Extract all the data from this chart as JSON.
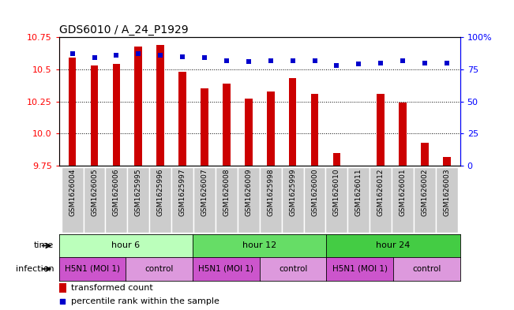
{
  "title": "GDS6010 / A_24_P1929",
  "samples": [
    "GSM1626004",
    "GSM1626005",
    "GSM1626006",
    "GSM1625995",
    "GSM1625996",
    "GSM1625997",
    "GSM1626007",
    "GSM1626008",
    "GSM1626009",
    "GSM1625998",
    "GSM1625999",
    "GSM1626000",
    "GSM1626010",
    "GSM1626011",
    "GSM1626012",
    "GSM1626001",
    "GSM1626002",
    "GSM1626003"
  ],
  "bar_values": [
    10.59,
    10.53,
    10.54,
    10.68,
    10.69,
    10.48,
    10.35,
    10.39,
    10.27,
    10.33,
    10.43,
    10.31,
    9.85,
    9.75,
    10.31,
    10.24,
    9.93,
    9.82
  ],
  "percentile_values": [
    87,
    84,
    86,
    87,
    86,
    85,
    84,
    82,
    81,
    82,
    82,
    82,
    78,
    79,
    80,
    82,
    80,
    80
  ],
  "ylim_left": [
    9.75,
    10.75
  ],
  "ylim_right": [
    0,
    100
  ],
  "yticks_left": [
    9.75,
    10.0,
    10.25,
    10.5,
    10.75
  ],
  "yticks_right": [
    0,
    25,
    50,
    75,
    100
  ],
  "ytick_labels_right": [
    "0",
    "25",
    "50",
    "75",
    "100%"
  ],
  "bar_color": "#cc0000",
  "dot_color": "#0000cc",
  "bar_bottom": 9.75,
  "time_groups": [
    {
      "label": "hour 6",
      "start": 0,
      "end": 6,
      "color": "#bbffbb"
    },
    {
      "label": "hour 12",
      "start": 6,
      "end": 12,
      "color": "#66dd66"
    },
    {
      "label": "hour 24",
      "start": 12,
      "end": 18,
      "color": "#44cc44"
    }
  ],
  "infection_groups": [
    {
      "label": "H5N1 (MOI 1)",
      "start": 0,
      "end": 3,
      "color": "#cc55cc"
    },
    {
      "label": "control",
      "start": 3,
      "end": 6,
      "color": "#dd99dd"
    },
    {
      "label": "H5N1 (MOI 1)",
      "start": 6,
      "end": 9,
      "color": "#cc55cc"
    },
    {
      "label": "control",
      "start": 9,
      "end": 12,
      "color": "#dd99dd"
    },
    {
      "label": "H5N1 (MOI 1)",
      "start": 12,
      "end": 15,
      "color": "#cc55cc"
    },
    {
      "label": "control",
      "start": 15,
      "end": 18,
      "color": "#dd99dd"
    }
  ],
  "time_label": "time",
  "infection_label": "infection",
  "legend_bar_label": "transformed count",
  "legend_dot_label": "percentile rank within the sample",
  "sample_label_bg": "#cccccc",
  "title_fontsize": 10,
  "axis_fontsize": 8,
  "sample_fontsize": 6.5,
  "row_label_fontsize": 8,
  "row_content_fontsize": 8
}
